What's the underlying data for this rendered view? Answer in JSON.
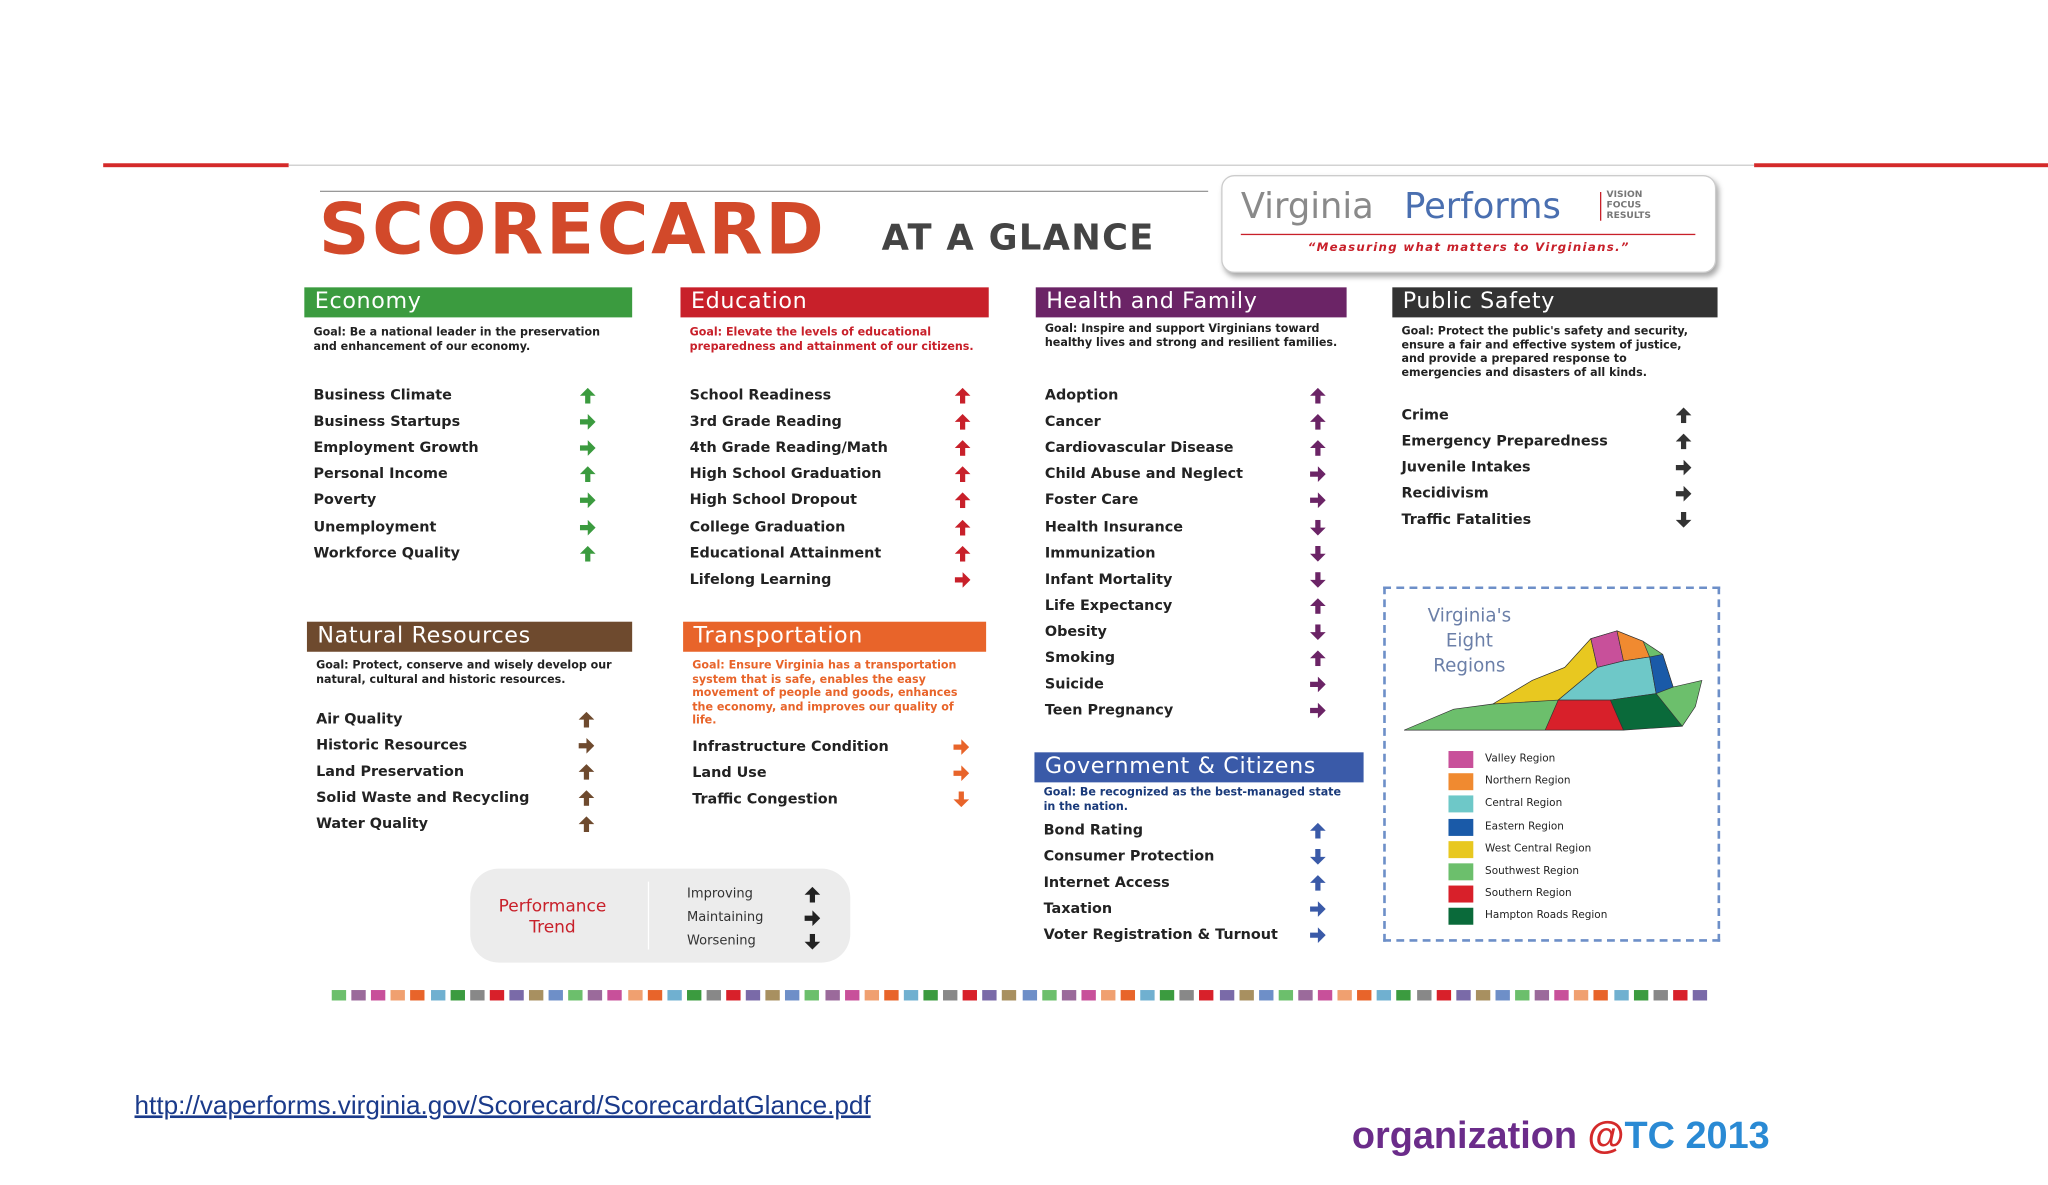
{
  "header": {
    "title": "SCORECARD",
    "subtitle": "AT A GLANCE"
  },
  "logo": {
    "name_a": "Virginia",
    "name_b": "Performs",
    "motto": [
      "VISION",
      "FOCUS",
      "RESULTS"
    ],
    "tagline": "“Measuring what matters to Virginians.”"
  },
  "sections": [
    {
      "title": "Economy",
      "color": "#3b9b3f",
      "goal": "Goal: Be a national leader in the preservation and enhancement of our economy.",
      "items": [
        {
          "label": "Business Climate",
          "trend": "up"
        },
        {
          "label": "Business Startups",
          "trend": "right"
        },
        {
          "label": "Employment Growth",
          "trend": "right"
        },
        {
          "label": "Personal Income",
          "trend": "up"
        },
        {
          "label": "Poverty",
          "trend": "right"
        },
        {
          "label": "Unemployment",
          "trend": "right"
        },
        {
          "label": "Workforce Quality",
          "trend": "up"
        }
      ]
    },
    {
      "title": "Education",
      "color": "#c8202a",
      "goal": "Goal: Elevate the levels of educational preparedness and attainment of our citizens.",
      "items": [
        {
          "label": "School Readiness",
          "trend": "up"
        },
        {
          "label": "3rd Grade Reading",
          "trend": "up"
        },
        {
          "label": "4th Grade Reading/Math",
          "trend": "up"
        },
        {
          "label": "High School Graduation",
          "trend": "up"
        },
        {
          "label": "High School Dropout",
          "trend": "up"
        },
        {
          "label": "College Graduation",
          "trend": "up"
        },
        {
          "label": "Educational Attainment",
          "trend": "up"
        },
        {
          "label": "Lifelong Learning",
          "trend": "right"
        }
      ]
    },
    {
      "title": "Health and Family",
      "color": "#6b2466",
      "goal": "Goal: Inspire and support Virginians toward healthy lives and strong and resilient families.",
      "items": [
        {
          "label": "Adoption",
          "trend": "up"
        },
        {
          "label": "Cancer",
          "trend": "up"
        },
        {
          "label": "Cardiovascular Disease",
          "trend": "up"
        },
        {
          "label": "Child Abuse and Neglect",
          "trend": "right"
        },
        {
          "label": "Foster Care",
          "trend": "right"
        },
        {
          "label": "Health Insurance",
          "trend": "down"
        },
        {
          "label": "Immunization",
          "trend": "down"
        },
        {
          "label": "Infant Mortality",
          "trend": "down"
        },
        {
          "label": "Life Expectancy",
          "trend": "up"
        },
        {
          "label": "Obesity",
          "trend": "down"
        },
        {
          "label": "Smoking",
          "trend": "up"
        },
        {
          "label": "Suicide",
          "trend": "right"
        },
        {
          "label": "Teen Pregnancy",
          "trend": "right"
        }
      ]
    },
    {
      "title": "Public Safety",
      "color": "#333333",
      "goal": "Goal: Protect the public's safety and security, ensure a fair and effective system of justice, and provide a prepared response to emergencies and disasters of all kinds.",
      "items": [
        {
          "label": "Crime",
          "trend": "up"
        },
        {
          "label": "Emergency Preparedness",
          "trend": "up"
        },
        {
          "label": "Juvenile Intakes",
          "trend": "right"
        },
        {
          "label": "Recidivism",
          "trend": "right"
        },
        {
          "label": "Traffic Fatalities",
          "trend": "down"
        }
      ]
    },
    {
      "title": "Natural Resources",
      "color": "#6e4a2e",
      "goal": "Goal: Protect, conserve and wisely develop our natural, cultural and historic resources.",
      "items": [
        {
          "label": "Air Quality",
          "trend": "up"
        },
        {
          "label": "Historic Resources",
          "trend": "right"
        },
        {
          "label": "Land Preservation",
          "trend": "up"
        },
        {
          "label": "Solid Waste and Recycling",
          "trend": "up"
        },
        {
          "label": "Water Quality",
          "trend": "up"
        }
      ]
    },
    {
      "title": "Transportation",
      "color": "#e8642a",
      "goal": "Goal: Ensure Virginia has a transportation system that is safe, enables the easy movement of people and goods, enhances the economy, and improves our quality of life.",
      "items": [
        {
          "label": "Infrastructure Condition",
          "trend": "right"
        },
        {
          "label": "Land Use",
          "trend": "right"
        },
        {
          "label": "Traffic Congestion",
          "trend": "down"
        }
      ]
    },
    {
      "title": "Government & Citizens",
      "color": "#3a5aa8",
      "goal": "Goal: Be recognized as the best-managed state in the nation.",
      "items": [
        {
          "label": "Bond Rating",
          "trend": "up"
        },
        {
          "label": "Consumer Protection",
          "trend": "down"
        },
        {
          "label": "Internet Access",
          "trend": "up"
        },
        {
          "label": "Taxation",
          "trend": "right"
        },
        {
          "label": "Voter Registration & Turnout",
          "trend": "right"
        }
      ]
    }
  ],
  "regions": {
    "title": "Virginia's Eight Regions",
    "legend": [
      {
        "label": "Valley Region",
        "color": "#c8509a"
      },
      {
        "label": "Northern Region",
        "color": "#f08a30"
      },
      {
        "label": "Central Region",
        "color": "#6ec8c8"
      },
      {
        "label": "Eastern Region",
        "color": "#1a5aa8"
      },
      {
        "label": "West Central Region",
        "color": "#e8c820"
      },
      {
        "label": "Southwest Region",
        "color": "#6cbf6c"
      },
      {
        "label": "Southern Region",
        "color": "#d8202a"
      },
      {
        "label": "Hampton Roads Region",
        "color": "#0a6a3a"
      }
    ]
  },
  "trend_legend": {
    "title": "Performance Trend",
    "items": [
      {
        "label": "Improving",
        "trend": "up"
      },
      {
        "label": "Maintaining",
        "trend": "right"
      },
      {
        "label": "Worsening",
        "trend": "down"
      }
    ]
  },
  "footer": {
    "url": "http://vaperforms.virginia.gov/Scorecard/ScorecardatGlance.pdf",
    "brand": [
      "organization ",
      "@",
      "TC 2013"
    ]
  }
}
